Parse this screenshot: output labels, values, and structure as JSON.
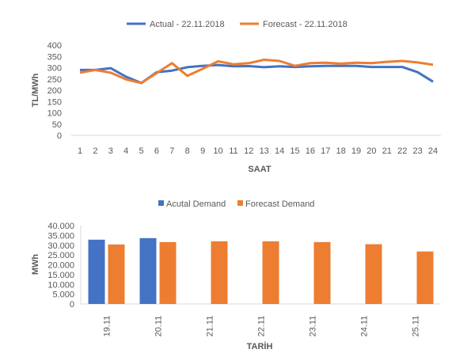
{
  "colors": {
    "actual": "#4472C4",
    "forecast": "#ED7D31",
    "axis": "#D9D9D9"
  },
  "chart_data": [
    {
      "type": "line",
      "title": "",
      "xlabel": "SAAT",
      "ylabel": "TL/MWh",
      "ylim": [
        0,
        400
      ],
      "yticks": [
        "0",
        "50",
        "100",
        "150",
        "200",
        "250",
        "300",
        "350",
        "400"
      ],
      "x": [
        "1",
        "2",
        "3",
        "4",
        "5",
        "6",
        "7",
        "8",
        "9",
        "10",
        "11",
        "12",
        "13",
        "14",
        "15",
        "16",
        "17",
        "18",
        "19",
        "20",
        "21",
        "22",
        "23",
        "24"
      ],
      "legend_position": "top",
      "grid": false,
      "series": [
        {
          "name": "Actual - 22.11.2018",
          "values": [
            290,
            290,
            298,
            260,
            232,
            280,
            287,
            302,
            308,
            312,
            306,
            307,
            302,
            306,
            303,
            306,
            308,
            308,
            308,
            303,
            303,
            303,
            280,
            238
          ]
        },
        {
          "name": "Forecast - 22.11.2018",
          "values": [
            278,
            290,
            278,
            248,
            232,
            276,
            320,
            264,
            295,
            328,
            315,
            320,
            335,
            330,
            308,
            320,
            322,
            318,
            322,
            320,
            326,
            330,
            323,
            313
          ]
        }
      ]
    },
    {
      "type": "bar",
      "title": "",
      "xlabel": "TARİH",
      "ylabel": "MWh",
      "ylim": [
        0,
        40000
      ],
      "yticks": [
        "0",
        "5.000",
        "10.000",
        "15.000",
        "20.000",
        "25.000",
        "30.000",
        "35.000",
        "40.000"
      ],
      "categories": [
        "19.11",
        "20.11",
        "21.11",
        "22.11",
        "23.11",
        "24.11",
        "25.11"
      ],
      "legend_position": "top",
      "grid": false,
      "series": [
        {
          "name": "Acutal Demand",
          "values": [
            32800,
            33600,
            null,
            null,
            null,
            null,
            null
          ]
        },
        {
          "name": "Forecast Demand",
          "values": [
            30400,
            31600,
            32000,
            32000,
            31600,
            30500,
            26800
          ]
        }
      ]
    }
  ]
}
